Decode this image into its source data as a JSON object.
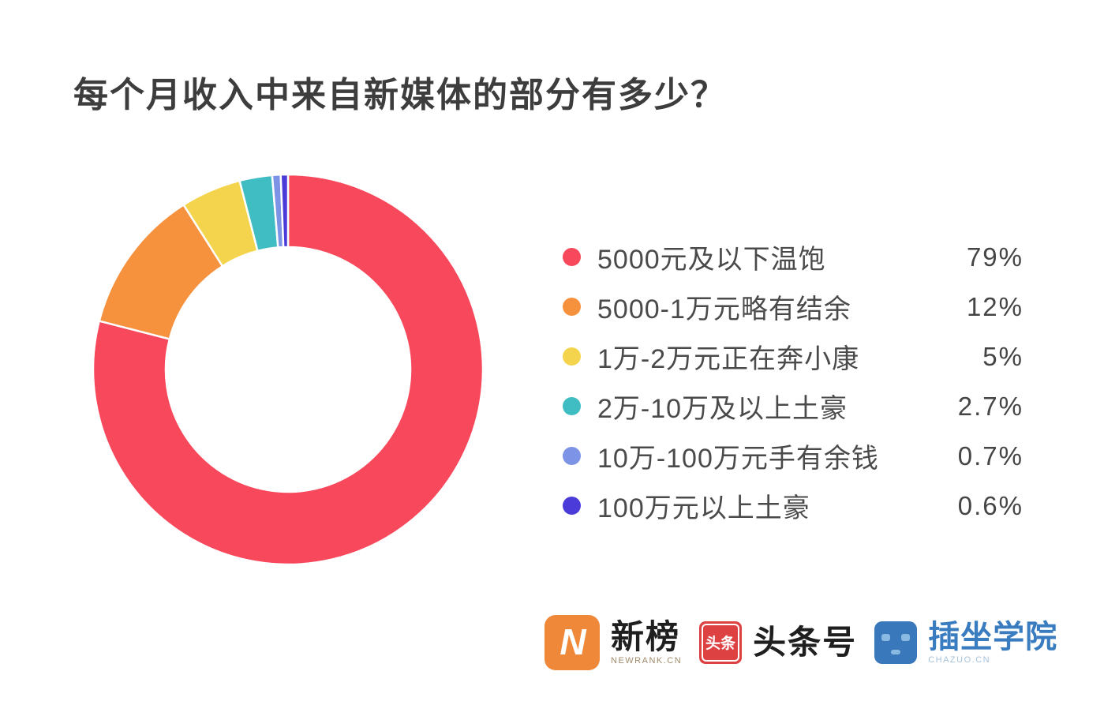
{
  "title": "每个月收入中来自新媒体的部分有多少？",
  "chart_data": {
    "type": "pie",
    "subtype": "donut",
    "title": "每个月收入中来自新媒体的部分有多少？",
    "start_angle_deg": 0,
    "direction": "clockwise",
    "legend_position": "right",
    "series": [
      {
        "label": "5000元及以下温饱",
        "value": 79,
        "display": "79%",
        "color": "#F8485C"
      },
      {
        "label": "5000-1万元略有结余",
        "value": 12,
        "display": "12%",
        "color": "#F6913E"
      },
      {
        "label": "1万-2万元正在奔小康",
        "value": 5,
        "display": "5%",
        "color": "#F5D44D"
      },
      {
        "label": "2万-10万及以上土豪",
        "value": 2.7,
        "display": "2.7%",
        "color": "#3FBDC2"
      },
      {
        "label": "10万-100万元手有余钱",
        "value": 0.7,
        "display": "0.7%",
        "color": "#7D94E6"
      },
      {
        "label": "100万元以上土豪",
        "value": 0.6,
        "display": "0.6%",
        "color": "#4B3CD9"
      }
    ]
  },
  "colors": {
    "newrank_orange": "#F0883A",
    "toutiao_red": "#DE4141",
    "chazuo_blue": "#3A78BC",
    "chazuo_face": "#8AB9E2"
  },
  "footer": {
    "logos": [
      {
        "id": "newrank",
        "icon_glyph": "N",
        "text": "新榜",
        "subtext": "NEWRANK.CN"
      },
      {
        "id": "toutiao",
        "icon_text": "头条",
        "text": "头条号"
      },
      {
        "id": "chazuo",
        "text": "插坐学院",
        "subtext": "CHAZUO.CN"
      }
    ]
  }
}
